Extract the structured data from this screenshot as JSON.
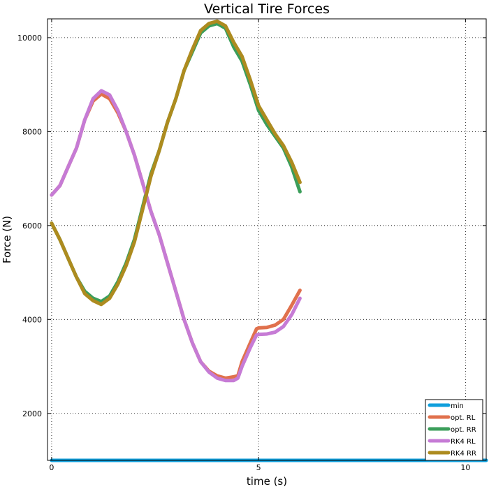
{
  "chart_data": {
    "type": "line",
    "title": "Vertical Tire Forces",
    "xlabel": "time (s)",
    "ylabel": "Force (N)",
    "xlim": [
      -0.1,
      10.5
    ],
    "ylim": [
      1000,
      10400
    ],
    "xticks": [
      0,
      5,
      10
    ],
    "yticks": [
      2000,
      4000,
      6000,
      8000,
      10000
    ],
    "xtick_labels": [
      "0",
      "5",
      "10"
    ],
    "ytick_labels": [
      "2000",
      "4000",
      "6000",
      "8000",
      "10000"
    ],
    "grid": true,
    "legend_position": "bottom-right",
    "series": [
      {
        "name": "min",
        "color": "#0f9fdc",
        "x": [
          0,
          10.5
        ],
        "y": [
          1000,
          1000
        ]
      },
      {
        "name": "opt. RL",
        "color": "#e0714d",
        "x": [
          0,
          0.2,
          0.4,
          0.6,
          0.8,
          1.0,
          1.2,
          1.4,
          1.6,
          1.8,
          2.0,
          2.2,
          2.4,
          2.6,
          2.8,
          3.0,
          3.2,
          3.4,
          3.6,
          3.8,
          4.0,
          4.2,
          4.4,
          4.5,
          4.6,
          4.8,
          4.95,
          5.0,
          5.2,
          5.4,
          5.6,
          5.8,
          6.0
        ],
        "y": [
          6650,
          6850,
          7250,
          7650,
          8250,
          8650,
          8800,
          8700,
          8400,
          8000,
          7500,
          6900,
          6300,
          5800,
          5200,
          4600,
          4000,
          3500,
          3100,
          2900,
          2800,
          2750,
          2780,
          2800,
          3100,
          3500,
          3800,
          3820,
          3830,
          3880,
          4000,
          4300,
          4620
        ]
      },
      {
        "name": "opt. RR",
        "color": "#3b9e5a",
        "x": [
          0,
          0.2,
          0.4,
          0.6,
          0.8,
          1.0,
          1.2,
          1.4,
          1.6,
          1.8,
          2.0,
          2.2,
          2.4,
          2.6,
          2.8,
          3.0,
          3.2,
          3.4,
          3.6,
          3.8,
          4.0,
          4.2,
          4.4,
          4.6,
          4.8,
          5.0,
          5.2,
          5.4,
          5.6,
          5.8,
          6.0
        ],
        "y": [
          6050,
          5700,
          5300,
          4900,
          4600,
          4450,
          4380,
          4500,
          4800,
          5200,
          5700,
          6400,
          7100,
          7600,
          8200,
          8700,
          9300,
          9700,
          10100,
          10250,
          10300,
          10200,
          9800,
          9500,
          9000,
          8450,
          8150,
          7900,
          7650,
          7250,
          6720
        ]
      },
      {
        "name": "RK4 RL",
        "color": "#c67bd5",
        "x": [
          0,
          0.2,
          0.4,
          0.6,
          0.8,
          1.0,
          1.2,
          1.4,
          1.6,
          1.8,
          2.0,
          2.2,
          2.4,
          2.6,
          2.8,
          3.0,
          3.2,
          3.4,
          3.6,
          3.8,
          4.0,
          4.2,
          4.4,
          4.5,
          4.6,
          4.8,
          4.95,
          5.0,
          5.2,
          5.4,
          5.6,
          5.8,
          6.0
        ],
        "y": [
          6650,
          6850,
          7250,
          7650,
          8250,
          8700,
          8870,
          8780,
          8450,
          8000,
          7500,
          6900,
          6300,
          5800,
          5200,
          4600,
          4000,
          3500,
          3100,
          2880,
          2750,
          2700,
          2700,
          2750,
          3000,
          3400,
          3670,
          3680,
          3690,
          3730,
          3850,
          4100,
          4450
        ]
      },
      {
        "name": "RK4 RR",
        "color": "#ad8b1f",
        "x": [
          0,
          0.2,
          0.4,
          0.6,
          0.8,
          1.0,
          1.2,
          1.4,
          1.6,
          1.8,
          2.0,
          2.2,
          2.4,
          2.6,
          2.8,
          3.0,
          3.2,
          3.4,
          3.6,
          3.8,
          4.0,
          4.2,
          4.4,
          4.6,
          4.8,
          5.0,
          5.2,
          5.4,
          5.6,
          5.8,
          6.0
        ],
        "y": [
          6050,
          5700,
          5300,
          4900,
          4550,
          4400,
          4320,
          4450,
          4750,
          5150,
          5650,
          6350,
          7050,
          7600,
          8200,
          8700,
          9300,
          9750,
          10150,
          10300,
          10350,
          10250,
          9900,
          9600,
          9100,
          8550,
          8250,
          7950,
          7700,
          7350,
          6920
        ]
      }
    ]
  }
}
